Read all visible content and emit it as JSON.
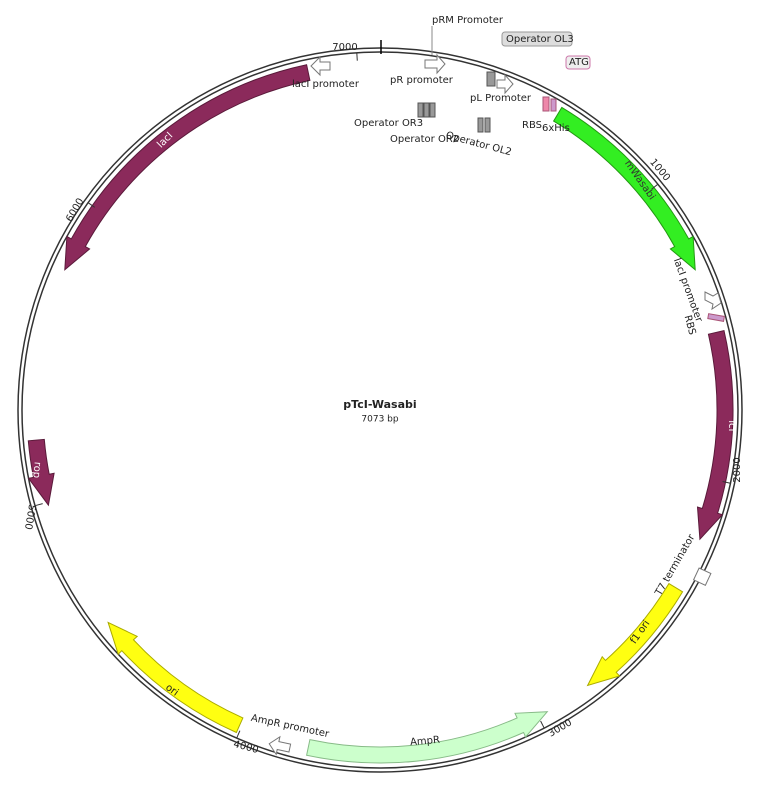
{
  "plasmid": {
    "name": "pTcI-Wasabi",
    "size": "7073 bp"
  },
  "ticks": [
    "1000",
    "2000",
    "3000",
    "4000",
    "5000",
    "6000",
    "7000"
  ],
  "features": [
    {
      "label": "pRM Promoter"
    },
    {
      "label": "Operator OL3"
    },
    {
      "label": "ATG"
    },
    {
      "label": "pR promoter"
    },
    {
      "label": "pL Promoter"
    },
    {
      "label": "lacI promoter"
    },
    {
      "label": "6xHis"
    },
    {
      "label": "RBS"
    },
    {
      "label": "Operator OR3"
    },
    {
      "label": "Operator OR2"
    },
    {
      "label": "Operator OL2"
    },
    {
      "label": "lacI"
    },
    {
      "label": "mWasabi"
    },
    {
      "label": "lacI promoter"
    },
    {
      "label": "RBS"
    },
    {
      "label": "TcI"
    },
    {
      "label": "T7 terminator"
    },
    {
      "label": "f1 ori"
    },
    {
      "label": "AmpR"
    },
    {
      "label": "AmpR promoter"
    },
    {
      "label": "ori"
    },
    {
      "label": "rop"
    }
  ]
}
